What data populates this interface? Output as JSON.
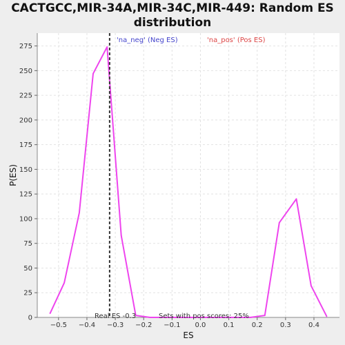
{
  "title_line1": "CACTGCC,MIR-34A,MIR-34C,MIR-449: Random ES",
  "title_line2": "distribution",
  "chart_data": {
    "type": "line",
    "xlabel": "ES",
    "ylabel": "P(ES)",
    "xlim": [
      -0.575,
      0.49
    ],
    "ylim": [
      0,
      288
    ],
    "x_ticks": [
      -0.5,
      -0.4,
      -0.3,
      -0.2,
      -0.1,
      0.0,
      0.1,
      0.2,
      0.3,
      0.4
    ],
    "x_tick_labels": [
      "−0.5",
      "−0.4",
      "−0.3",
      "−0.2",
      "−0.1",
      "0.0",
      "0.1",
      "0.2",
      "0.3",
      "0.4"
    ],
    "y_ticks": [
      0,
      25,
      50,
      75,
      100,
      125,
      150,
      175,
      200,
      225,
      250,
      275
    ],
    "y_tick_labels": [
      "0",
      "25",
      "50",
      "75",
      "100",
      "125",
      "150",
      "175",
      "200",
      "225",
      "250",
      "275"
    ],
    "grid": true,
    "series": [
      {
        "color": "#ee44ee",
        "x": [
          -0.53,
          -0.48,
          -0.427,
          -0.378,
          -0.329,
          -0.279,
          -0.228,
          -0.178,
          -0.128,
          -0.077,
          -0.027,
          0.024,
          0.075,
          0.126,
          0.176,
          0.227,
          0.278,
          0.338,
          0.39,
          0.445
        ],
        "y": [
          4,
          35,
          106,
          247,
          274,
          83,
          2,
          0,
          0,
          0,
          0,
          0,
          0,
          0,
          0,
          2,
          96,
          120,
          32,
          1
        ]
      }
    ],
    "real_es_line": {
      "x": -0.32,
      "color": "#333333",
      "dashed": true
    },
    "legend": [
      {
        "label": "'na_neg' (Neg ES)",
        "color": "#4444cc"
      },
      {
        "label": "'na_pos' (Pos ES)",
        "color": "#dd4444"
      }
    ],
    "legend_placement": "top-center",
    "annotations": [
      {
        "text": "Real ES -0.3"
      },
      {
        "text": "Sets with pos scores: 25%"
      }
    ]
  }
}
